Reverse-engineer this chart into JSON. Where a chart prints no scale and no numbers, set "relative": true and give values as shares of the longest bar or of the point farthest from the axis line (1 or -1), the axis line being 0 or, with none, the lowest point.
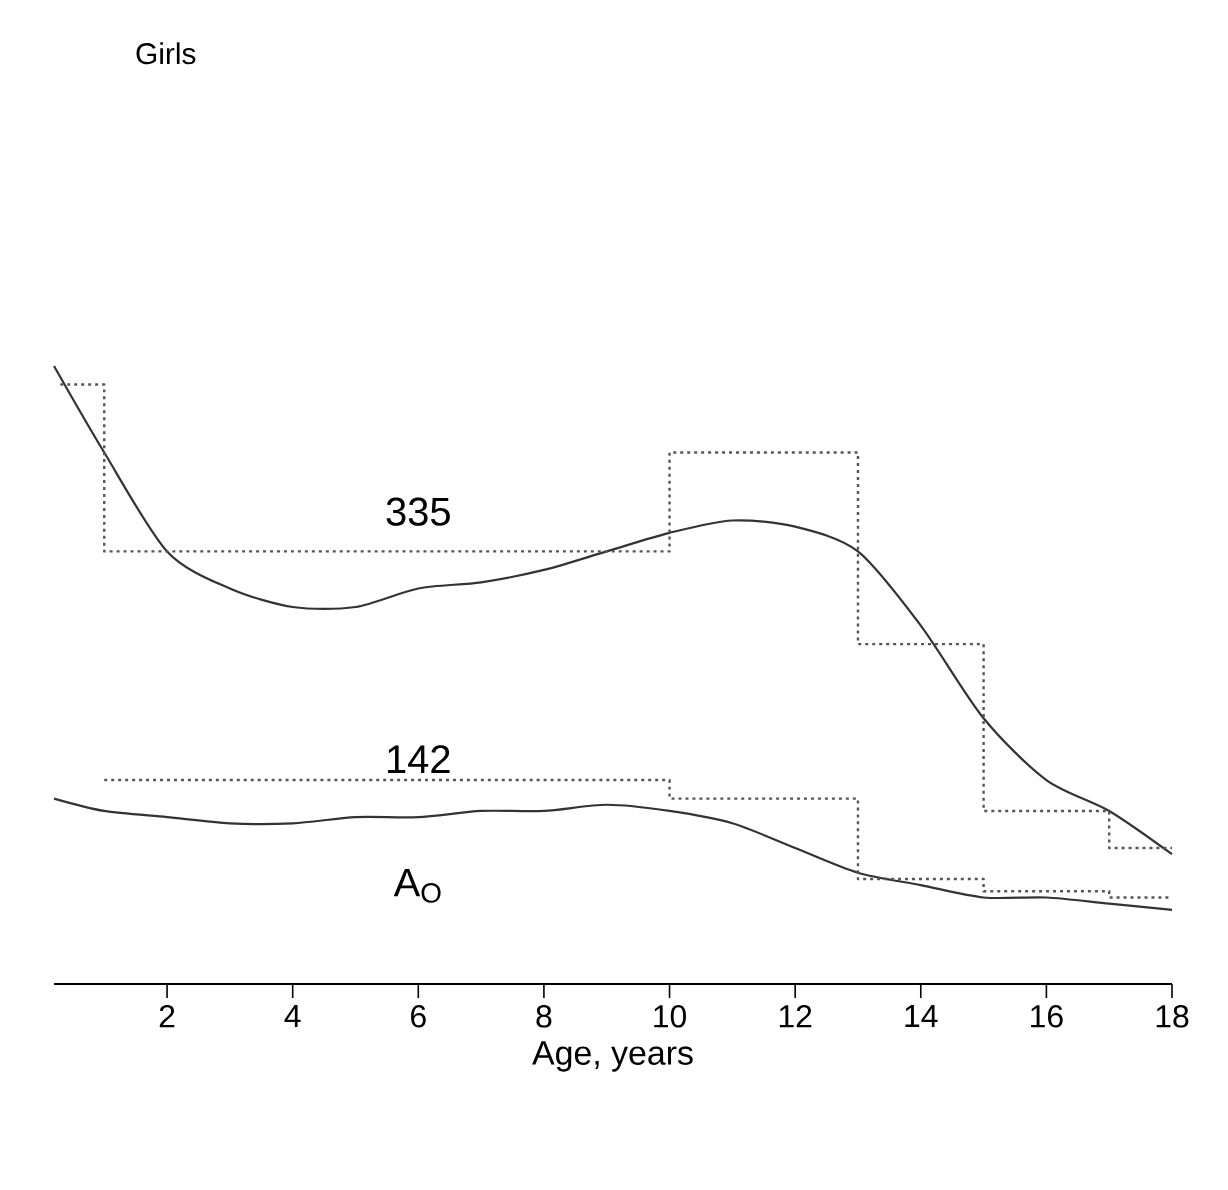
{
  "chart_data": {
    "type": "line",
    "title": "Girls",
    "xlabel": "Age, years",
    "relative": true,
    "xlim": [
      0.2,
      18
    ],
    "xticks": [
      2,
      4,
      6,
      8,
      10,
      12,
      14,
      16,
      18
    ],
    "grid": false,
    "marker": "none",
    "series": [
      {
        "color": "#333333",
        "line_style": "solid",
        "x": [
          0.2,
          1,
          2,
          3,
          4,
          5,
          6,
          7,
          8,
          9,
          10,
          11,
          12,
          13,
          14,
          15,
          16,
          17,
          18
        ],
        "values": [
          1.0,
          0.86,
          0.7,
          0.64,
          0.61,
          0.61,
          0.64,
          0.65,
          0.67,
          0.7,
          0.73,
          0.75,
          0.74,
          0.7,
          0.58,
          0.43,
          0.33,
          0.28,
          0.21
        ]
      },
      {
        "color": "#333333",
        "line_style": "solid",
        "x": [
          0.2,
          1,
          2,
          3,
          4,
          5,
          6,
          7,
          8,
          9,
          10,
          11,
          12,
          13,
          14,
          15,
          16,
          17,
          18
        ],
        "values": [
          0.3,
          0.28,
          0.27,
          0.26,
          0.26,
          0.27,
          0.27,
          0.28,
          0.28,
          0.29,
          0.28,
          0.26,
          0.22,
          0.18,
          0.16,
          0.14,
          0.14,
          0.13,
          0.12
        ]
      },
      {
        "type": "step",
        "color": "#555555",
        "line_style": "dotted",
        "x": [
          0.3,
          1,
          10,
          13,
          15,
          17,
          18
        ],
        "values": [
          0.97,
          0.7,
          0.86,
          0.55,
          0.28,
          0.22,
          0.22
        ]
      },
      {
        "type": "step",
        "color": "#555555",
        "line_style": "dotted",
        "x": [
          1,
          10,
          13,
          15,
          17,
          18
        ],
        "values": [
          0.33,
          0.3,
          0.17,
          0.15,
          0.14,
          0.14
        ]
      }
    ],
    "annotations": [
      "335",
      "142",
      "A$_{O}$"
    ]
  }
}
